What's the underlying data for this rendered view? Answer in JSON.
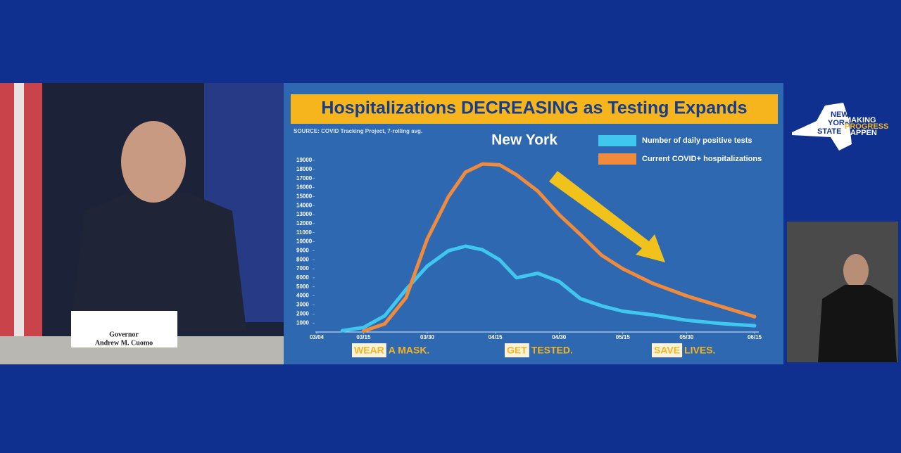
{
  "chart_data": {
    "type": "line",
    "title": "Hospitalizations DECREASING as Testing Expands",
    "source": "SOURCE: COVID Tracking Project, 7-rolling avg.",
    "subtitle": "New York",
    "x": [
      "03/10",
      "03/15",
      "03/20",
      "03/25",
      "03/30",
      "04/04",
      "04/08",
      "04/12",
      "04/16",
      "04/20",
      "04/25",
      "04/30",
      "05/05",
      "05/10",
      "05/15",
      "05/22",
      "05/30",
      "06/08",
      "06/15"
    ],
    "series": [
      {
        "name": "Number of daily positive tests",
        "color": "#3fc7f0",
        "values": [
          150,
          500,
          1800,
          4700,
          7300,
          9000,
          9500,
          9100,
          8000,
          6000,
          6500,
          5600,
          3700,
          2900,
          2300,
          1900,
          1300,
          900,
          700
        ]
      },
      {
        "name": "Current COVID+ hospitalizations",
        "color": "#f08a3c",
        "values": [
          null,
          100,
          900,
          3800,
          10300,
          15000,
          17700,
          18600,
          18500,
          17400,
          15600,
          13000,
          10800,
          8500,
          7000,
          5400,
          4000,
          2700,
          1700
        ]
      }
    ],
    "xlim": [
      "03/04",
      "06/15"
    ],
    "xticks": [
      "03/04",
      "03/15",
      "03/30",
      "04/15",
      "04/30",
      "05/15",
      "05/30",
      "06/15"
    ],
    "ylim": [
      0,
      19000
    ],
    "yticks": [
      1000,
      2000,
      3000,
      4000,
      5000,
      6000,
      7000,
      8000,
      9000,
      10000,
      11000,
      12000,
      13000,
      14000,
      15000,
      16000,
      17000,
      18000,
      19000
    ],
    "legend": "top-right"
  },
  "slogans": [
    {
      "highlight": "WEAR",
      "rest": "A MASK."
    },
    {
      "highlight": "GET",
      "rest": "TESTED."
    },
    {
      "highlight": "SAVE",
      "rest": "LIVES."
    }
  ],
  "logo": {
    "state": [
      "NEW",
      "YORK",
      "STATE"
    ],
    "motto": [
      "MAKING",
      "PROGRESS",
      "HAPPEN"
    ]
  },
  "nameplate": [
    "Governor",
    "Andrew M. Cuomo"
  ]
}
